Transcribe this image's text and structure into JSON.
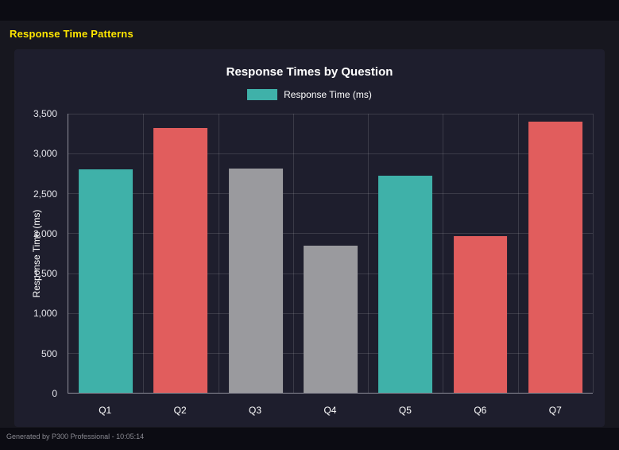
{
  "page": {
    "title": "Response Time Patterns",
    "title_color": "#ffe600",
    "footer": "Generated by P300 Professional - 10:05:14"
  },
  "chart_data": {
    "type": "bar",
    "title": "Response Times by Question",
    "legend": [
      {
        "label": "Response Time (ms)",
        "color": "#3fb1a9"
      }
    ],
    "legend_position": "top",
    "categories": [
      "Q1",
      "Q2",
      "Q3",
      "Q4",
      "Q5",
      "Q6",
      "Q7"
    ],
    "values": [
      2800,
      3320,
      2810,
      1840,
      2720,
      1960,
      3400
    ],
    "bar_colors": [
      "#3fb1a9",
      "#e15d5d",
      "#9a9a9e",
      "#9a9a9e",
      "#3fb1a9",
      "#e15d5d",
      "#e15d5d"
    ],
    "xlabel": "",
    "ylabel": "Response Time (ms)",
    "ylim": [
      0,
      3500
    ],
    "yticks": [
      0,
      500,
      1000,
      1500,
      2000,
      2500,
      3000,
      3500
    ],
    "grid": true
  }
}
